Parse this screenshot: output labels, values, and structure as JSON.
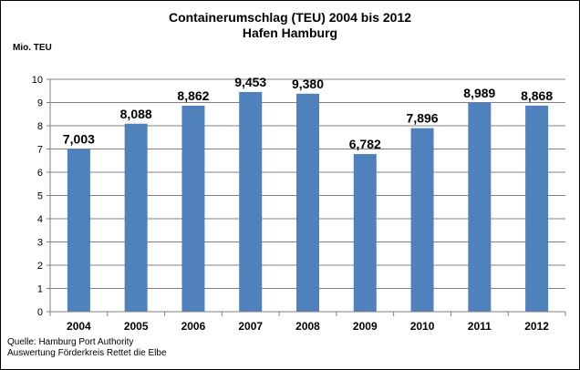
{
  "chart_data": {
    "type": "bar",
    "title": "Containerumschlag (TEU) 2004 bis 2012",
    "subtitle": "Hafen Hamburg",
    "ylabel": "Mio. TEU",
    "xlabel": "",
    "categories": [
      "2004",
      "2005",
      "2006",
      "2007",
      "2008",
      "2009",
      "2010",
      "2011",
      "2012"
    ],
    "values": [
      7.003,
      8.088,
      8.862,
      9.453,
      9.38,
      6.782,
      7.896,
      8.989,
      8.868
    ],
    "data_labels": [
      "7,003",
      "8,088",
      "8,862",
      "9,453",
      "9,380",
      "6,782",
      "7,896",
      "8,989",
      "8,868"
    ],
    "ylim": [
      0,
      10
    ],
    "yticks": [
      0,
      1,
      2,
      3,
      4,
      5,
      6,
      7,
      8,
      9,
      10
    ],
    "grid": true,
    "legend": "none",
    "bar_color": "#4f81bd"
  },
  "source": {
    "line1": "Quelle: Hamburg Port Authority",
    "line2": "Auswertung Förderkreis Rettet die Elbe"
  }
}
